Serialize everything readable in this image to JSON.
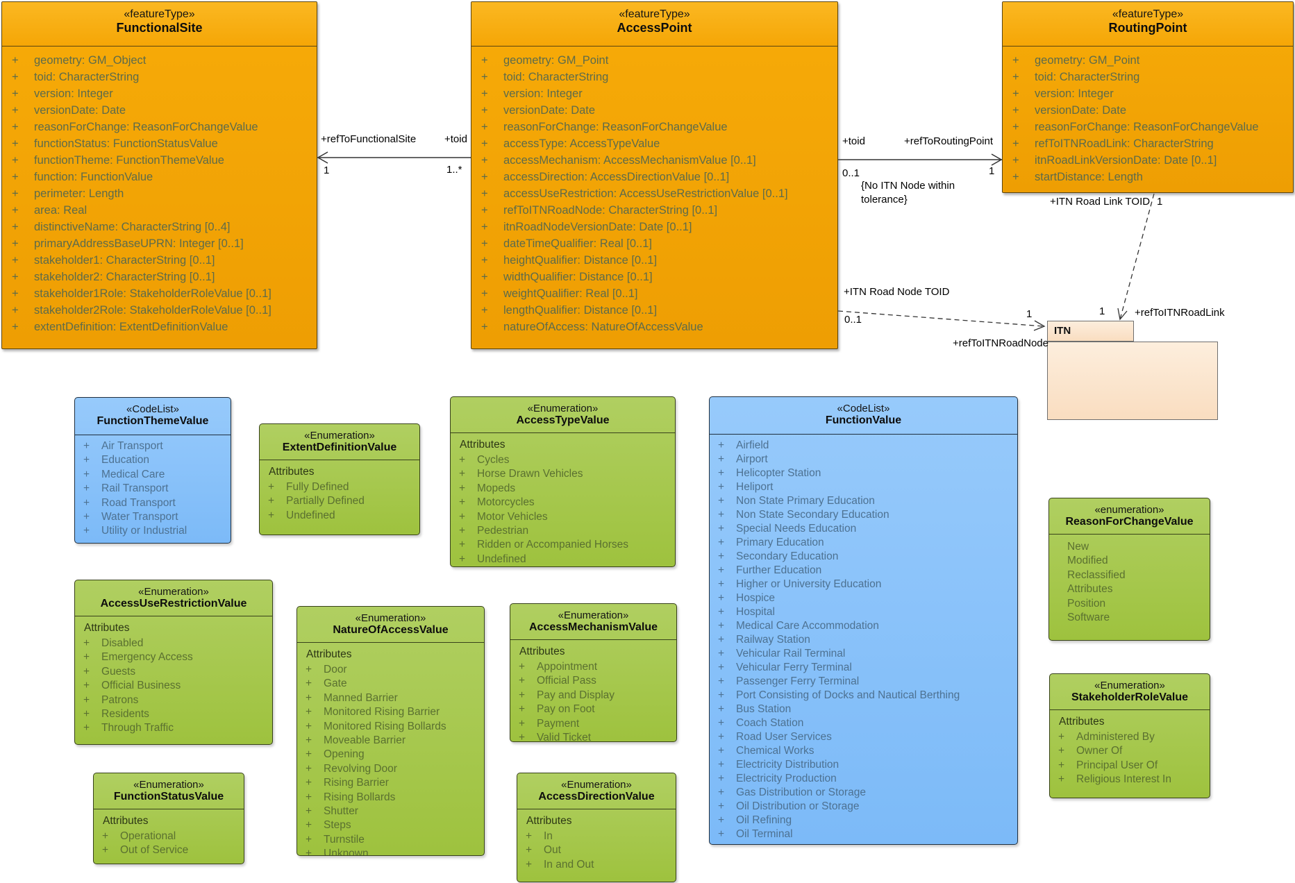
{
  "diagram": {
    "plus": "+",
    "colors": {
      "feature_fill": "#F5A506",
      "codelist_fill": "#86C1FA",
      "enum_fill": "#A6C74F",
      "package_fill": "#FBE4CD",
      "connector": "#333333"
    },
    "classes": {
      "functionalSite": {
        "stereotype": "«featureType»",
        "name": "FunctionalSite",
        "attributes": [
          "geometry: GM_Object",
          "toid: CharacterString",
          "version: Integer",
          "versionDate: Date",
          "reasonForChange: ReasonForChangeValue",
          "functionStatus: FunctionStatusValue",
          "functionTheme: FunctionThemeValue",
          "function: FunctionValue",
          "perimeter: Length",
          "area: Real",
          "distinctiveName: CharacterString [0..4]",
          "primaryAddressBaseUPRN: Integer [0..1]",
          "stakeholder1: CharacterString [0..1]",
          "stakeholder2: CharacterString [0..1]",
          "stakeholder1Role: StakeholderRoleValue [0..1]",
          "stakeholder2Role: StakeholderRoleValue [0..1]",
          "extentDefinition: ExtentDefinitionValue"
        ]
      },
      "accessPoint": {
        "stereotype": "«featureType»",
        "name": "AccessPoint",
        "attributes": [
          "geometry: GM_Point",
          "toid: CharacterString",
          "version: Integer",
          "versionDate: Date",
          "reasonForChange: ReasonForChangeValue",
          "accessType: AccessTypeValue",
          "accessMechanism: AccessMechanismValue [0..1]",
          "accessDirection: AccessDirectionValue [0..1]",
          "accessUseRestriction: AccessUseRestrictionValue [0..1]",
          "refToITNRoadNode: CharacterString [0..1]",
          "itnRoadNodeVersionDate: Date [0..1]",
          "dateTimeQualifier: Real [0..1]",
          "heightQualifier: Distance [0..1]",
          "widthQualifier: Distance [0..1]",
          "weightQualifier: Real [0..1]",
          "lengthQualifier: Distance [0..1]",
          "natureOfAccess: NatureOfAccessValue"
        ]
      },
      "routingPoint": {
        "stereotype": "«featureType»",
        "name": "RoutingPoint",
        "attributes": [
          "geometry: GM_Point",
          "toid: CharacterString",
          "version: Integer",
          "versionDate: Date",
          "reasonForChange: ReasonForChangeValue",
          "refToITNRoadLink: CharacterString",
          "itnRoadLinkVersionDate: Date [0..1]",
          "startDistance: Length"
        ]
      },
      "functionThemeValue": {
        "stereotype": "«CodeList»",
        "name": "FunctionThemeValue",
        "items": [
          "Air Transport",
          "Education",
          "Medical Care",
          "Rail Transport",
          "Road Transport",
          "Water Transport",
          "Utility or Industrial"
        ]
      },
      "extentDefinitionValue": {
        "stereotype": "«Enumeration»",
        "name": "ExtentDefinitionValue",
        "section": "Attributes",
        "items": [
          "Fully Defined",
          "Partially Defined",
          "Undefined"
        ]
      },
      "accessTypeValue": {
        "stereotype": "«Enumeration»",
        "name": "AccessTypeValue",
        "section": "Attributes",
        "items": [
          "Cycles",
          "Horse Drawn Vehicles",
          "Mopeds",
          "Motorcycles",
          "Motor Vehicles",
          "Pedestrian",
          "Ridden or Accompanied Horses",
          "Undefined"
        ]
      },
      "functionValue": {
        "stereotype": "«CodeList»",
        "name": "FunctionValue",
        "items": [
          "Airfield",
          "Airport",
          "Helicopter Station",
          "Heliport",
          "Non State Primary Education",
          "Non State Secondary Education",
          "Special Needs Education",
          "Primary Education",
          "Secondary Education",
          "Further Education",
          "Higher or University Education",
          "Hospice",
          "Hospital",
          "Medical Care Accommodation",
          "Railway Station",
          "Vehicular Rail Terminal",
          "Vehicular Ferry Terminal",
          "Passenger Ferry Terminal",
          "Port Consisting of Docks and Nautical Berthing",
          "Bus Station",
          "Coach Station",
          "Road User Services",
          "Chemical Works",
          "Electricity Distribution",
          "Electricity Production",
          "Gas Distribution or Storage",
          "Oil Distribution or Storage",
          "Oil Refining",
          "Oil Terminal"
        ]
      },
      "accessUseRestrictionValue": {
        "stereotype": "«Enumeration»",
        "name": "AccessUseRestrictionValue",
        "section": "Attributes",
        "items": [
          "Disabled",
          "Emergency Access",
          "Guests",
          "Official Business",
          "Patrons",
          "Residents",
          "Through Traffic"
        ]
      },
      "natureOfAccessValue": {
        "stereotype": "«Enumeration»",
        "name": "NatureOfAccessValue",
        "section": "Attributes",
        "items": [
          "Door",
          "Gate",
          "Manned Barrier",
          "Monitored Rising Barrier",
          "Monitored Rising Bollards",
          "Moveable Barrier",
          "Opening",
          "Revolving Door",
          "Rising Barrier",
          "Rising Bollards",
          "Shutter",
          "Steps",
          "Turnstile",
          "Unknown"
        ]
      },
      "accessMechanismValue": {
        "stereotype": "«Enumeration»",
        "name": "AccessMechanismValue",
        "section": "Attributes",
        "items": [
          "Appointment",
          "Official Pass",
          "Pay and Display",
          "Pay on Foot",
          "Payment",
          "Valid Ticket"
        ]
      },
      "accessDirectionValue": {
        "stereotype": "«Enumeration»",
        "name": "AccessDirectionValue",
        "section": "Attributes",
        "items": [
          "In",
          "Out",
          "In and Out"
        ]
      },
      "functionStatusValue": {
        "stereotype": "«Enumeration»",
        "name": "FunctionStatusValue",
        "section": "Attributes",
        "items": [
          "Operational",
          "Out of Service"
        ]
      },
      "reasonForChangeValue": {
        "stereotype": "«enumeration»",
        "name": "ReasonForChangeValue",
        "items": [
          "New",
          "Modified",
          "Reclassified",
          "Attributes",
          "Position",
          "Software"
        ]
      },
      "stakeholderRoleValue": {
        "stereotype": "«Enumeration»",
        "name": "StakeholderRoleValue",
        "section": "Attributes",
        "items": [
          "Administered By",
          "Owner Of",
          "Principal User Of",
          "Religious Interest In"
        ]
      }
    },
    "package": {
      "name": "ITN"
    },
    "labels": {
      "refToFunctionalSite": "+refToFunctionalSite",
      "toidLeft": "+toid",
      "multOneA": "1",
      "multOneMany": "1..*",
      "toidRight": "+toid",
      "refToRoutingPoint": "+refToRoutingPoint",
      "multZeroOneA": "0..1",
      "multOneB": "1",
      "constraint": "{No ITN Node within tolerance}",
      "itnRoadLinkToid": "+ITN Road Link TOID",
      "multOneC": "1",
      "multOneD": "1",
      "refToITNRoadLink": "+refToITNRoadLink",
      "itnRoadNodeToid": "+ITN Road Node TOID",
      "multZeroOneB": "0..1",
      "multOneE": "1",
      "refToITNRoadNode": "+refToITNRoadNode"
    }
  }
}
